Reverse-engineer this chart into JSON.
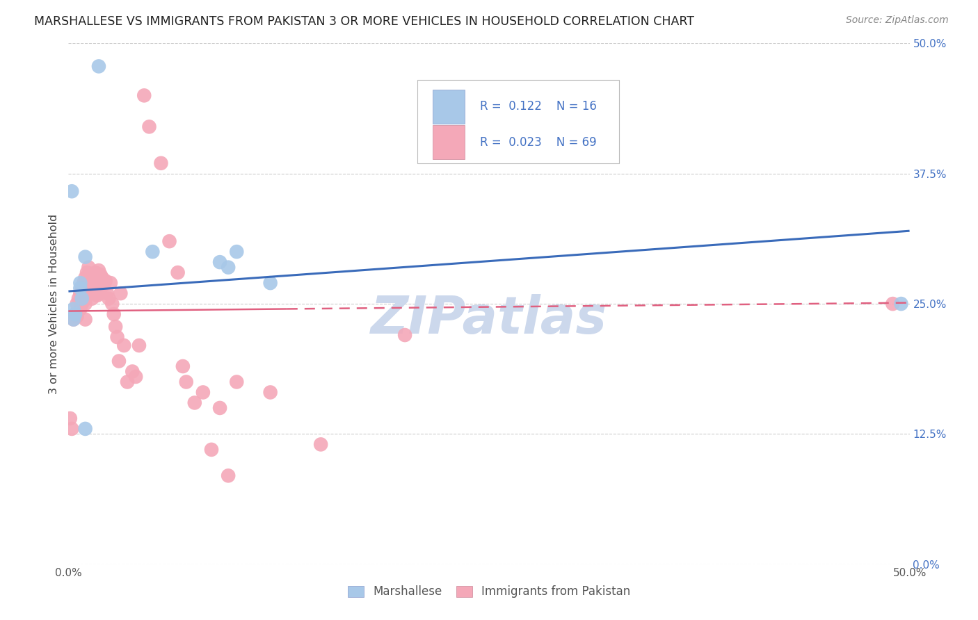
{
  "title": "MARSHALLESE VS IMMIGRANTS FROM PAKISTAN 3 OR MORE VEHICLES IN HOUSEHOLD CORRELATION CHART",
  "source": "Source: ZipAtlas.com",
  "ylabel": "3 or more Vehicles in Household",
  "xlim": [
    0.0,
    0.5
  ],
  "ylim": [
    0.0,
    0.5
  ],
  "ytick_labels": [
    "0.0%",
    "12.5%",
    "25.0%",
    "37.5%",
    "50.0%"
  ],
  "ytick_values": [
    0.0,
    0.125,
    0.25,
    0.375,
    0.5
  ],
  "xtick_values": [
    0.0,
    0.5
  ],
  "xtick_labels": [
    "0.0%",
    "50.0%"
  ],
  "marshallese_color": "#a8c8e8",
  "pakistan_color": "#f4a8b8",
  "trend_blue_color": "#3a6bba",
  "trend_pink_color": "#e06080",
  "background_color": "#ffffff",
  "watermark_text": "ZIPatlas",
  "watermark_color": "#ccd8ec",
  "legend_label_1": "Marshallese",
  "legend_label_2": "Immigrants from Pakistan",
  "marshallese_x": [
    0.018,
    0.002,
    0.003,
    0.003,
    0.004,
    0.007,
    0.007,
    0.008,
    0.01,
    0.01,
    0.05,
    0.09,
    0.095,
    0.1,
    0.12,
    0.495
  ],
  "marshallese_y": [
    0.478,
    0.358,
    0.245,
    0.235,
    0.24,
    0.27,
    0.265,
    0.255,
    0.295,
    0.13,
    0.3,
    0.29,
    0.285,
    0.3,
    0.27,
    0.25
  ],
  "pakistan_x": [
    0.001,
    0.002,
    0.003,
    0.004,
    0.005,
    0.005,
    0.006,
    0.007,
    0.007,
    0.008,
    0.008,
    0.009,
    0.009,
    0.01,
    0.01,
    0.01,
    0.01,
    0.011,
    0.011,
    0.012,
    0.012,
    0.013,
    0.013,
    0.014,
    0.014,
    0.015,
    0.015,
    0.016,
    0.016,
    0.017,
    0.017,
    0.018,
    0.018,
    0.019,
    0.019,
    0.02,
    0.021,
    0.022,
    0.023,
    0.024,
    0.025,
    0.026,
    0.027,
    0.028,
    0.029,
    0.03,
    0.031,
    0.033,
    0.035,
    0.038,
    0.04,
    0.042,
    0.045,
    0.048,
    0.055,
    0.06,
    0.065,
    0.068,
    0.07,
    0.075,
    0.08,
    0.085,
    0.09,
    0.095,
    0.1,
    0.12,
    0.15,
    0.2,
    0.49
  ],
  "pakistan_y": [
    0.14,
    0.13,
    0.235,
    0.24,
    0.25,
    0.238,
    0.255,
    0.26,
    0.245,
    0.265,
    0.25,
    0.27,
    0.258,
    0.275,
    0.265,
    0.25,
    0.235,
    0.28,
    0.26,
    0.285,
    0.268,
    0.278,
    0.26,
    0.272,
    0.255,
    0.278,
    0.26,
    0.28,
    0.262,
    0.275,
    0.258,
    0.282,
    0.265,
    0.278,
    0.26,
    0.275,
    0.268,
    0.272,
    0.26,
    0.255,
    0.27,
    0.25,
    0.24,
    0.228,
    0.218,
    0.195,
    0.26,
    0.21,
    0.175,
    0.185,
    0.18,
    0.21,
    0.45,
    0.42,
    0.385,
    0.31,
    0.28,
    0.19,
    0.175,
    0.155,
    0.165,
    0.11,
    0.15,
    0.085,
    0.175,
    0.165,
    0.115,
    0.22,
    0.25
  ],
  "blue_trend_x0": 0.0,
  "blue_trend_y0": 0.262,
  "blue_trend_x1": 0.5,
  "blue_trend_y1": 0.32,
  "pink_trend_x0": 0.0,
  "pink_trend_y0": 0.243,
  "pink_trend_x1": 0.5,
  "pink_trend_y1": 0.251
}
